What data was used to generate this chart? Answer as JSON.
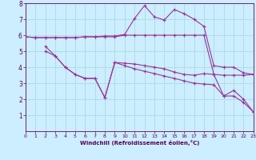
{
  "bg_color": "#cceeff",
  "line_color": "#993399",
  "grid_color": "#aadddd",
  "xlabel": "Windchill (Refroidissement éolien,°C)",
  "xlim": [
    0,
    23
  ],
  "ylim": [
    0,
    8
  ],
  "xticks": [
    0,
    1,
    2,
    3,
    4,
    5,
    6,
    7,
    8,
    9,
    10,
    11,
    12,
    13,
    14,
    15,
    16,
    17,
    18,
    19,
    20,
    21,
    22,
    23
  ],
  "yticks": [
    1,
    2,
    3,
    4,
    5,
    6,
    7,
    8
  ],
  "lines": [
    {
      "x": [
        0,
        1,
        2,
        3,
        4,
        5,
        6,
        7,
        8,
        9,
        10,
        11,
        12,
        13,
        14,
        15,
        16,
        17,
        18,
        19,
        20,
        21,
        22,
        23
      ],
      "y": [
        5.9,
        5.85,
        5.85,
        5.85,
        5.85,
        5.85,
        5.9,
        5.9,
        5.9,
        5.9,
        6.0,
        6.0,
        6.0,
        6.0,
        6.0,
        6.0,
        6.0,
        6.0,
        6.0,
        3.55,
        3.5,
        3.5,
        3.5,
        3.55
      ]
    },
    {
      "x": [
        2,
        3,
        4,
        5,
        6,
        7,
        8,
        9,
        10,
        11,
        12,
        13,
        14,
        15,
        16,
        17,
        18,
        19,
        20,
        21,
        22,
        23
      ],
      "y": [
        5.3,
        4.7,
        4.0,
        3.55,
        3.3,
        3.3,
        2.1,
        4.3,
        4.25,
        4.2,
        4.1,
        4.0,
        3.9,
        3.7,
        3.55,
        3.5,
        3.6,
        3.55,
        2.2,
        2.55,
        2.0,
        1.2
      ]
    },
    {
      "x": [
        2,
        3,
        4,
        5,
        6,
        7,
        8,
        9,
        10,
        11,
        12,
        13,
        14,
        15,
        16,
        17,
        18,
        19,
        20,
        21,
        22,
        23
      ],
      "y": [
        5.0,
        4.7,
        4.0,
        3.55,
        3.3,
        3.3,
        2.1,
        4.3,
        4.1,
        3.9,
        3.75,
        3.6,
        3.45,
        3.3,
        3.15,
        3.0,
        2.95,
        2.9,
        2.2,
        2.2,
        1.8,
        1.2
      ]
    },
    {
      "x": [
        0,
        1,
        2,
        3,
        4,
        5,
        6,
        7,
        8,
        9,
        10,
        11,
        12,
        13,
        14,
        15,
        16,
        17,
        18,
        19,
        20,
        21,
        22,
        23
      ],
      "y": [
        5.9,
        5.85,
        5.85,
        5.85,
        5.85,
        5.85,
        5.9,
        5.9,
        5.95,
        5.95,
        6.05,
        7.05,
        7.85,
        7.15,
        6.95,
        7.6,
        7.35,
        7.0,
        6.55,
        4.1,
        4.0,
        4.0,
        3.65,
        3.55
      ]
    }
  ]
}
